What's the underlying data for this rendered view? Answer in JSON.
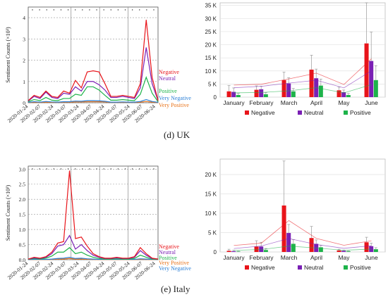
{
  "figure": {
    "caption_uk": "(d) UK",
    "caption_italy": "(e) Italy"
  },
  "colors": {
    "negative": "#e8141a",
    "neutral": "#7a1fb4",
    "positive": "#1db34a",
    "very_negative": "#2a7fd6",
    "very_positive": "#e8731a"
  },
  "chart_data": [
    {
      "id": "uk-line",
      "type": "line",
      "ylabel": "Sentiment Counts (×10³)",
      "ylim": [
        0,
        4.5
      ],
      "yticks": [
        0,
        1,
        2,
        3,
        4
      ],
      "ytick_labels": [
        "0",
        "1",
        "2",
        "3",
        "4"
      ],
      "categories": [
        "2020-01-24",
        "2020-02-07",
        "2020-02-24",
        "2020-03-07",
        "2020-03-24",
        "2020-04-07",
        "2020-04-24",
        "2020-05-07",
        "2020-05-24",
        "2020-06-07",
        "2020-06-24"
      ],
      "x": [
        0,
        1,
        2,
        3,
        4,
        5,
        6,
        7,
        8,
        9,
        10,
        11,
        12,
        13,
        14,
        15,
        16,
        17,
        18,
        19,
        20,
        21,
        22
      ],
      "series": [
        {
          "name": "Negative",
          "color_key": "negative",
          "values": [
            0.1,
            0.35,
            0.25,
            0.55,
            0.3,
            0.25,
            0.55,
            0.45,
            1.05,
            0.7,
            1.45,
            1.5,
            1.45,
            0.9,
            0.3,
            0.3,
            0.35,
            0.3,
            0.25,
            0.9,
            3.9,
            1.2,
            0.1
          ]
        },
        {
          "name": "Neutral",
          "color_key": "neutral",
          "values": [
            0.08,
            0.3,
            0.2,
            0.5,
            0.25,
            0.2,
            0.45,
            0.4,
            0.75,
            0.55,
            1.0,
            1.0,
            0.85,
            0.6,
            0.25,
            0.25,
            0.3,
            0.25,
            0.2,
            0.7,
            2.6,
            0.9,
            0.1
          ]
        },
        {
          "name": "Positive",
          "color_key": "positive",
          "values": [
            0.05,
            0.15,
            0.1,
            0.25,
            0.12,
            0.1,
            0.2,
            0.2,
            0.4,
            0.35,
            0.75,
            0.75,
            0.6,
            0.35,
            0.12,
            0.12,
            0.15,
            0.12,
            0.1,
            0.4,
            1.2,
            0.45,
            0.05
          ]
        },
        {
          "name": "Very Negative",
          "color_key": "very_negative",
          "values": [
            0.02,
            0.05,
            0.03,
            0.06,
            0.04,
            0.03,
            0.05,
            0.05,
            0.08,
            0.07,
            0.1,
            0.1,
            0.09,
            0.07,
            0.03,
            0.03,
            0.04,
            0.03,
            0.03,
            0.06,
            0.15,
            0.06,
            0.02
          ]
        },
        {
          "name": "Very Positive",
          "color_key": "very_positive",
          "values": [
            0.01,
            0.02,
            0.01,
            0.03,
            0.02,
            0.02,
            0.03,
            0.03,
            0.04,
            0.04,
            0.05,
            0.05,
            0.05,
            0.04,
            0.02,
            0.02,
            0.02,
            0.02,
            0.02,
            0.03,
            0.06,
            0.03,
            0.01
          ]
        }
      ]
    },
    {
      "id": "uk-bar",
      "type": "bar",
      "categories": [
        "January",
        "February",
        "March",
        "April",
        "May",
        "June"
      ],
      "ylim": [
        0,
        36000
      ],
      "yticks": [
        0,
        5000,
        10000,
        15000,
        20000,
        25000,
        30000,
        35000
      ],
      "ytick_labels": [
        "0",
        "5 K",
        "10 K",
        "15 K",
        "20 K",
        "25 K",
        "30 K",
        "35 K"
      ],
      "series": [
        {
          "name": "Negative",
          "color_key": "negative",
          "values": [
            2200,
            2800,
            6500,
            10500,
            2600,
            20500
          ],
          "errors": [
            2200,
            1500,
            3000,
            5500,
            1200,
            16000
          ]
        },
        {
          "name": "Neutral",
          "color_key": "neutral",
          "values": [
            2000,
            3000,
            5200,
            7200,
            1900,
            13800
          ],
          "errors": [
            1500,
            1200,
            2200,
            3500,
            800,
            11000
          ]
        },
        {
          "name": "Positive",
          "color_key": "positive",
          "values": [
            800,
            1100,
            2200,
            4400,
            800,
            6500
          ],
          "errors": [
            600,
            600,
            1100,
            2500,
            600,
            5500
          ]
        }
      ]
    },
    {
      "id": "italy-line",
      "type": "line",
      "ylabel": "Sentiment Counts (×10³)",
      "ylim": [
        0,
        3.1
      ],
      "yticks": [
        0,
        0.5,
        1.0,
        1.5,
        2.0,
        2.5,
        3.0
      ],
      "ytick_labels": [
        "0.0",
        "0.5",
        "1.0",
        "1.5",
        "2.0",
        "2.5",
        "3.0"
      ],
      "categories": [
        "2020-01-24",
        "2020-02-07",
        "2020-02-24",
        "2020-03-07",
        "2020-03-24",
        "2020-04-07",
        "2020-04-24",
        "2020-05-07",
        "2020-05-24",
        "2020-06-07",
        "2020-06-24"
      ],
      "x": [
        0,
        1,
        2,
        3,
        4,
        5,
        6,
        7,
        8,
        9,
        10,
        11,
        12,
        13,
        14,
        15,
        16,
        17,
        18,
        19,
        20,
        21,
        22
      ],
      "series": [
        {
          "name": "Negative",
          "color_key": "negative",
          "values": [
            0.02,
            0.08,
            0.05,
            0.1,
            0.25,
            0.55,
            0.6,
            2.95,
            0.7,
            0.75,
            0.45,
            0.2,
            0.1,
            0.05,
            0.05,
            0.08,
            0.05,
            0.05,
            0.1,
            0.4,
            0.2,
            0.05,
            0.02
          ]
        },
        {
          "name": "Neutral",
          "color_key": "neutral",
          "values": [
            0.02,
            0.06,
            0.04,
            0.08,
            0.2,
            0.45,
            0.5,
            0.8,
            0.35,
            0.5,
            0.3,
            0.15,
            0.08,
            0.04,
            0.04,
            0.06,
            0.04,
            0.04,
            0.08,
            0.3,
            0.15,
            0.04,
            0.02
          ]
        },
        {
          "name": "Positive",
          "color_key": "positive",
          "values": [
            0.01,
            0.04,
            0.02,
            0.05,
            0.12,
            0.25,
            0.25,
            0.4,
            0.2,
            0.25,
            0.15,
            0.08,
            0.04,
            0.02,
            0.02,
            0.03,
            0.02,
            0.02,
            0.04,
            0.15,
            0.08,
            0.02,
            0.01
          ]
        },
        {
          "name": "Very Negative",
          "color_key": "very_negative",
          "values": [
            0.005,
            0.01,
            0.01,
            0.01,
            0.02,
            0.04,
            0.05,
            0.08,
            0.04,
            0.05,
            0.03,
            0.02,
            0.01,
            0.01,
            0.01,
            0.01,
            0.01,
            0.01,
            0.01,
            0.03,
            0.02,
            0.01,
            0.005
          ]
        },
        {
          "name": "Very Positive",
          "color_key": "very_positive",
          "values": [
            0.002,
            0.005,
            0.005,
            0.005,
            0.01,
            0.02,
            0.02,
            0.04,
            0.02,
            0.02,
            0.015,
            0.01,
            0.005,
            0.005,
            0.005,
            0.005,
            0.005,
            0.005,
            0.005,
            0.015,
            0.01,
            0.005,
            0.002
          ]
        }
      ]
    },
    {
      "id": "italy-bar",
      "type": "bar",
      "categories": [
        "January",
        "February",
        "March",
        "April",
        "May",
        "June"
      ],
      "ylim": [
        0,
        24000
      ],
      "yticks": [
        0,
        5000,
        10000,
        15000,
        20000
      ],
      "ytick_labels": [
        "0",
        "5 K",
        "10 K",
        "15 K",
        "20 K"
      ],
      "series": [
        {
          "name": "Negative",
          "color_key": "negative",
          "values": [
            300,
            1400,
            12000,
            3600,
            400,
            2500
          ],
          "errors": [
            400,
            1500,
            11500,
            3000,
            300,
            1300
          ]
        },
        {
          "name": "Neutral",
          "color_key": "neutral",
          "values": [
            200,
            1400,
            4900,
            2100,
            300,
            1500
          ],
          "errors": [
            250,
            1100,
            2200,
            1000,
            200,
            800
          ]
        },
        {
          "name": "Positive",
          "color_key": "positive",
          "values": [
            100,
            500,
            2100,
            1200,
            150,
            700
          ],
          "errors": [
            100,
            400,
            1100,
            500,
            100,
            400
          ]
        }
      ]
    }
  ],
  "legend_bar": [
    "Negative",
    "Neutral",
    "Positive"
  ],
  "legend_line_uk": [
    "Negative",
    "Neutral",
    "Positive",
    "Very Negative",
    "Very Positive"
  ],
  "legend_line_italy": [
    "Negative",
    "Neutral",
    "Positive",
    "Very Positive",
    "Very Negative"
  ]
}
